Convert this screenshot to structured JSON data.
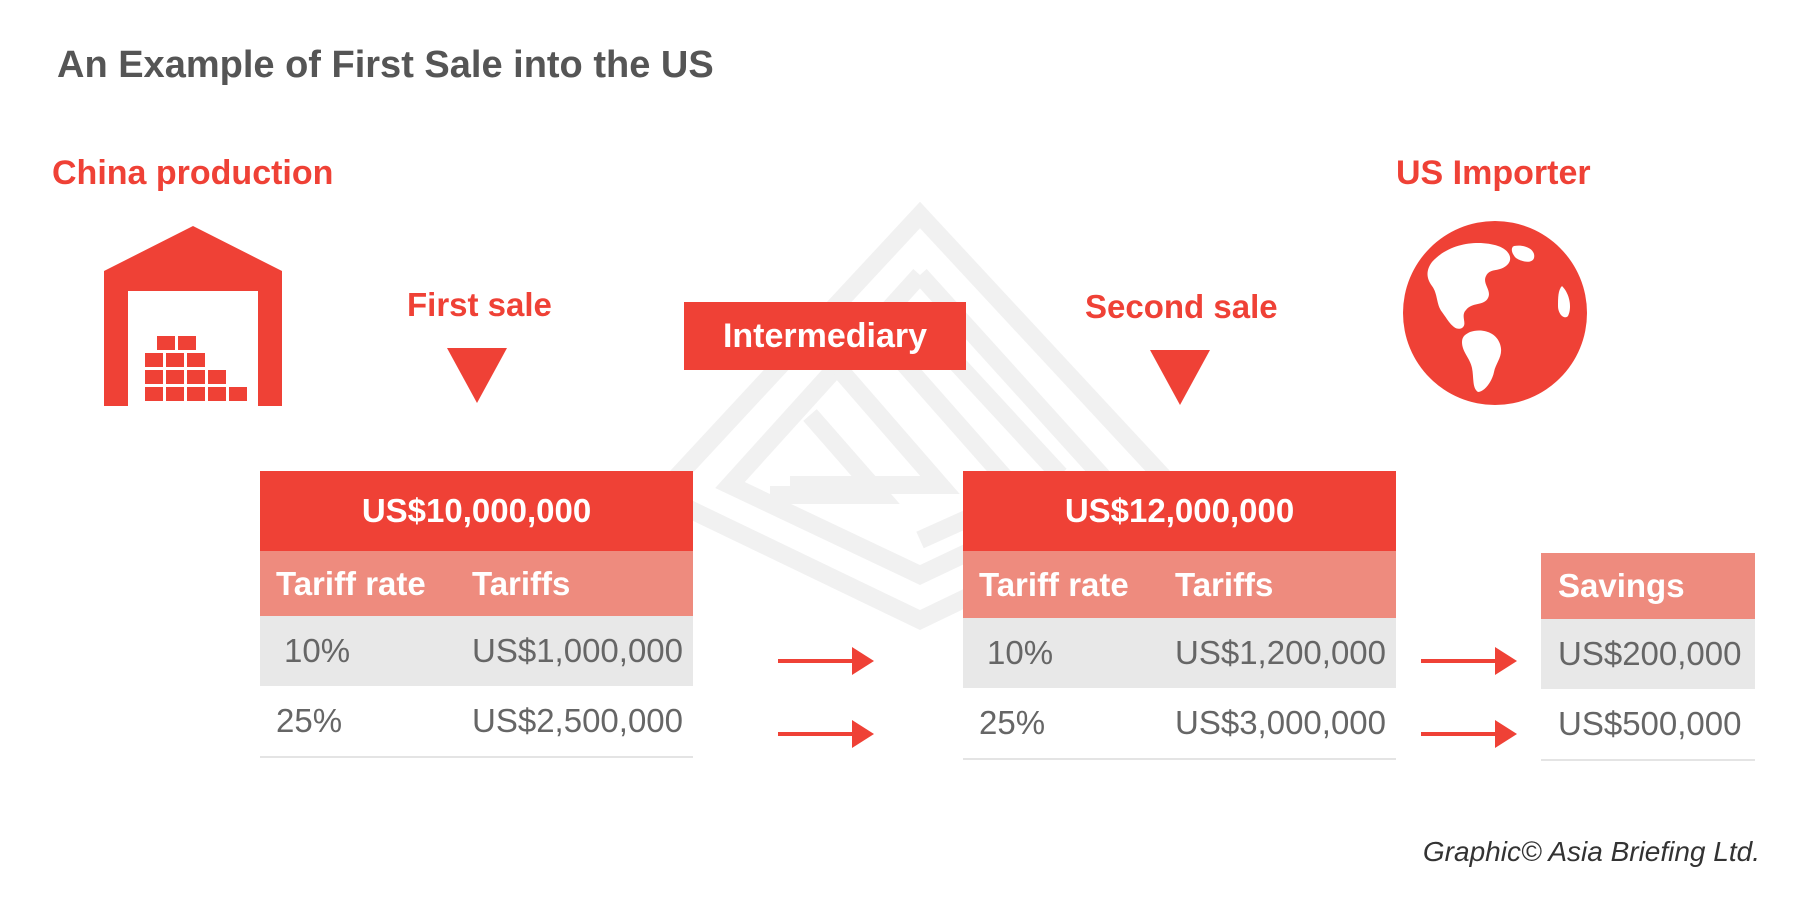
{
  "title": "An Example of First Sale into the US",
  "labels": {
    "china_production": "China production",
    "us_importer": "US Importer",
    "first_sale": "First sale",
    "second_sale": "Second sale",
    "intermediary": "Intermediary"
  },
  "first_sale_table": {
    "price": "US$10,000,000",
    "headers": [
      "Tariff rate",
      "Tariffs"
    ],
    "rows": [
      {
        "rate": "10%",
        "tariff": "US$1,000,000"
      },
      {
        "rate": "25%",
        "tariff": "US$2,500,000"
      }
    ]
  },
  "second_sale_table": {
    "price": "US$12,000,000",
    "headers": [
      "Tariff rate",
      "Tariffs"
    ],
    "rows": [
      {
        "rate": "10%",
        "tariff": "US$1,200,000"
      },
      {
        "rate": "25%",
        "tariff": "US$3,000,000"
      }
    ]
  },
  "savings_table": {
    "header": "Savings",
    "rows": [
      "US$200,000",
      "US$500,000"
    ]
  },
  "credit": "Graphic© Asia Briefing Ltd.",
  "colors": {
    "accent": "#ef4136",
    "subheader": "#ee8b7e",
    "row_shade": "#e8e8e8",
    "title": "#555555",
    "body_text": "#666666",
    "watermark": "#f1f1f1"
  },
  "icons": [
    "warehouse-icon",
    "globe-icon",
    "down-triangle-icon",
    "right-arrow-icon",
    "watermark-logo"
  ]
}
